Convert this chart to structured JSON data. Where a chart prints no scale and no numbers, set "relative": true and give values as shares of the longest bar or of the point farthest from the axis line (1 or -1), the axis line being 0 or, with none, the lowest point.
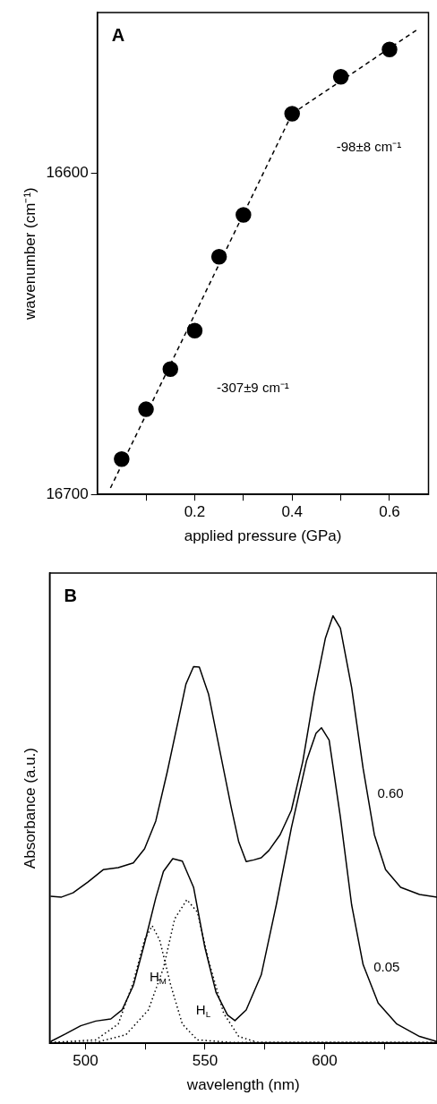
{
  "chart_data": [
    {
      "type": "scatter",
      "title": "A",
      "xlabel": "applied pressure (GPa)",
      "ylabel": "wavenumber (cm⁻¹)",
      "xlim": [
        0,
        0.68
      ],
      "xticks": [
        {
          "value": 0.1,
          "label": null
        },
        0.2,
        {
          "value": 0.3,
          "label": null
        },
        0.4,
        {
          "value": 0.5,
          "label": null
        },
        0.6
      ],
      "ylim": [
        16700,
        16550
      ],
      "yticks": [
        16600,
        16700
      ],
      "marker": "circle",
      "series": [
        {
          "color": "#000000",
          "x": [
            0.05,
            0.1,
            0.15,
            0.2,
            0.25,
            0.3,
            0.4,
            0.5,
            0.6
          ],
          "values": [
            16689,
            16673.5,
            16661,
            16649,
            16626,
            16613,
            16581.5,
            16570,
            16561.5
          ]
        },
        {
          "type": "line",
          "color": "#000000",
          "marker": "none",
          "line_style": "dashed",
          "x": [
            0.027,
            0.4
          ],
          "values": [
            16698,
            16581.5
          ]
        },
        {
          "type": "line",
          "color": "#000000",
          "marker": "none",
          "line_style": "dashed",
          "x": [
            0.4,
            0.66
          ],
          "values": [
            16581.5,
            16555
          ]
        }
      ],
      "annotations": [
        "-98±8 cm⁻¹",
        "-307±9 cm⁻¹"
      ]
    },
    {
      "type": "line",
      "title": "B",
      "xlabel": "wavelength (nm)",
      "ylabel": "Absorbance (a.u.)",
      "relative": true,
      "xlim": [
        485,
        647
      ],
      "xticks": [
        500,
        {
          "value": 525,
          "label": null
        },
        550,
        {
          "value": 575,
          "label": null
        },
        600,
        {
          "value": 625,
          "label": null
        }
      ],
      "marker": "none",
      "series": [
        {
          "name": "0.60",
          "color": "#000000",
          "line_style": "solid",
          "x": [
            485.4,
            490,
            494.8,
            501,
            507.4,
            513.7,
            520,
            524.7,
            529.4,
            534.2,
            538.9,
            542,
            545.2,
            547.6,
            551.5,
            556.2,
            560.9,
            564.1,
            567.2,
            570.4,
            573.5,
            576.7,
            581.4,
            586.1,
            590.9,
            595.6,
            600.3,
            603.5,
            606.6,
            611.3,
            616.1,
            620.8,
            625.5,
            631.8,
            639.7,
            647
          ],
          "values": [
            0.344,
            0.342,
            0.352,
            0.377,
            0.406,
            0.411,
            0.422,
            0.455,
            0.52,
            0.635,
            0.758,
            0.84,
            0.881,
            0.88,
            0.816,
            0.684,
            0.553,
            0.471,
            0.425,
            0.429,
            0.434,
            0.451,
            0.488,
            0.545,
            0.66,
            0.816,
            0.947,
            1,
            0.971,
            0.832,
            0.643,
            0.488,
            0.406,
            0.365,
            0.348,
            0.342
          ]
        },
        {
          "name": "0.05",
          "color": "#000000",
          "line_style": "solid",
          "x": [
            485.4,
            491.7,
            498,
            504.3,
            510.6,
            515.3,
            520,
            524.7,
            529.4,
            532.6,
            536.5,
            540.5,
            545.2,
            549.9,
            554.6,
            559.4,
            562.5,
            567.2,
            573.5,
            579.8,
            586.1,
            592.4,
            596.4,
            598.7,
            601.9,
            606.6,
            611.3,
            616.1,
            622.4,
            630.2,
            639.7,
            647
          ],
          "values": [
            0.004,
            0.022,
            0.041,
            0.052,
            0.057,
            0.078,
            0.135,
            0.234,
            0.34,
            0.402,
            0.432,
            0.426,
            0.365,
            0.225,
            0.119,
            0.066,
            0.053,
            0.078,
            0.16,
            0.324,
            0.504,
            0.66,
            0.725,
            0.738,
            0.709,
            0.529,
            0.324,
            0.184,
            0.094,
            0.045,
            0.016,
            0.004
          ]
        },
        {
          "name": "H$_{M}$",
          "color": "#000000",
          "line_style": "dotted",
          "x": [
            485.4,
            504.3,
            513.7,
            520,
            524.7,
            527.9,
            531,
            535.7,
            540.5,
            546.8,
            561,
            647
          ],
          "values": [
            0.002,
            0.008,
            0.045,
            0.143,
            0.242,
            0.275,
            0.242,
            0.135,
            0.045,
            0.008,
            0.002,
            0.002
          ]
        },
        {
          "name": "H$_{L}$",
          "color": "#000000",
          "line_style": "dotted",
          "x": [
            485.4,
            504.3,
            516.9,
            526.3,
            532.6,
            537.3,
            542.4,
            546.8,
            551.5,
            557.8,
            564.1,
            572,
            647
          ],
          "values": [
            0.002,
            0.002,
            0.02,
            0.078,
            0.176,
            0.291,
            0.336,
            0.307,
            0.193,
            0.07,
            0.016,
            0.002,
            0.002
          ]
        }
      ]
    }
  ]
}
